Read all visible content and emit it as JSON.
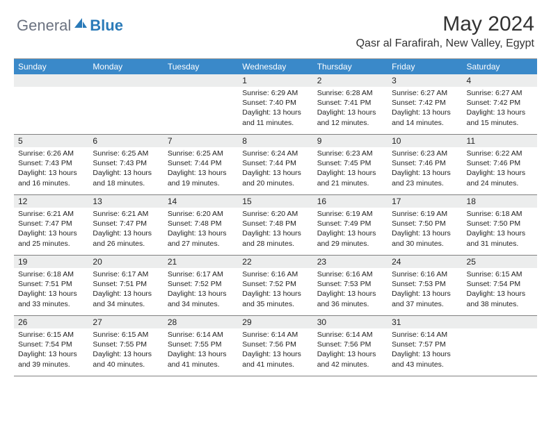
{
  "brand": {
    "gray": "General",
    "blue": "Blue"
  },
  "title": "May 2024",
  "location": "Qasr al Farafirah, New Valley, Egypt",
  "colors": {
    "header_bg": "#3a89c9",
    "daynum_bg": "#eceded",
    "border": "#808080",
    "logo_gray": "#6b7280",
    "logo_blue": "#2a7ab8"
  },
  "dayHeaders": [
    "Sunday",
    "Monday",
    "Tuesday",
    "Wednesday",
    "Thursday",
    "Friday",
    "Saturday"
  ],
  "weeks": [
    [
      {
        "n": "",
        "sunrise": "",
        "sunset": "",
        "daylight1": "",
        "daylight2": ""
      },
      {
        "n": "",
        "sunrise": "",
        "sunset": "",
        "daylight1": "",
        "daylight2": ""
      },
      {
        "n": "",
        "sunrise": "",
        "sunset": "",
        "daylight1": "",
        "daylight2": ""
      },
      {
        "n": "1",
        "sunrise": "Sunrise: 6:29 AM",
        "sunset": "Sunset: 7:40 PM",
        "daylight1": "Daylight: 13 hours",
        "daylight2": "and 11 minutes."
      },
      {
        "n": "2",
        "sunrise": "Sunrise: 6:28 AM",
        "sunset": "Sunset: 7:41 PM",
        "daylight1": "Daylight: 13 hours",
        "daylight2": "and 12 minutes."
      },
      {
        "n": "3",
        "sunrise": "Sunrise: 6:27 AM",
        "sunset": "Sunset: 7:42 PM",
        "daylight1": "Daylight: 13 hours",
        "daylight2": "and 14 minutes."
      },
      {
        "n": "4",
        "sunrise": "Sunrise: 6:27 AM",
        "sunset": "Sunset: 7:42 PM",
        "daylight1": "Daylight: 13 hours",
        "daylight2": "and 15 minutes."
      }
    ],
    [
      {
        "n": "5",
        "sunrise": "Sunrise: 6:26 AM",
        "sunset": "Sunset: 7:43 PM",
        "daylight1": "Daylight: 13 hours",
        "daylight2": "and 16 minutes."
      },
      {
        "n": "6",
        "sunrise": "Sunrise: 6:25 AM",
        "sunset": "Sunset: 7:43 PM",
        "daylight1": "Daylight: 13 hours",
        "daylight2": "and 18 minutes."
      },
      {
        "n": "7",
        "sunrise": "Sunrise: 6:25 AM",
        "sunset": "Sunset: 7:44 PM",
        "daylight1": "Daylight: 13 hours",
        "daylight2": "and 19 minutes."
      },
      {
        "n": "8",
        "sunrise": "Sunrise: 6:24 AM",
        "sunset": "Sunset: 7:44 PM",
        "daylight1": "Daylight: 13 hours",
        "daylight2": "and 20 minutes."
      },
      {
        "n": "9",
        "sunrise": "Sunrise: 6:23 AM",
        "sunset": "Sunset: 7:45 PM",
        "daylight1": "Daylight: 13 hours",
        "daylight2": "and 21 minutes."
      },
      {
        "n": "10",
        "sunrise": "Sunrise: 6:23 AM",
        "sunset": "Sunset: 7:46 PM",
        "daylight1": "Daylight: 13 hours",
        "daylight2": "and 23 minutes."
      },
      {
        "n": "11",
        "sunrise": "Sunrise: 6:22 AM",
        "sunset": "Sunset: 7:46 PM",
        "daylight1": "Daylight: 13 hours",
        "daylight2": "and 24 minutes."
      }
    ],
    [
      {
        "n": "12",
        "sunrise": "Sunrise: 6:21 AM",
        "sunset": "Sunset: 7:47 PM",
        "daylight1": "Daylight: 13 hours",
        "daylight2": "and 25 minutes."
      },
      {
        "n": "13",
        "sunrise": "Sunrise: 6:21 AM",
        "sunset": "Sunset: 7:47 PM",
        "daylight1": "Daylight: 13 hours",
        "daylight2": "and 26 minutes."
      },
      {
        "n": "14",
        "sunrise": "Sunrise: 6:20 AM",
        "sunset": "Sunset: 7:48 PM",
        "daylight1": "Daylight: 13 hours",
        "daylight2": "and 27 minutes."
      },
      {
        "n": "15",
        "sunrise": "Sunrise: 6:20 AM",
        "sunset": "Sunset: 7:48 PM",
        "daylight1": "Daylight: 13 hours",
        "daylight2": "and 28 minutes."
      },
      {
        "n": "16",
        "sunrise": "Sunrise: 6:19 AM",
        "sunset": "Sunset: 7:49 PM",
        "daylight1": "Daylight: 13 hours",
        "daylight2": "and 29 minutes."
      },
      {
        "n": "17",
        "sunrise": "Sunrise: 6:19 AM",
        "sunset": "Sunset: 7:50 PM",
        "daylight1": "Daylight: 13 hours",
        "daylight2": "and 30 minutes."
      },
      {
        "n": "18",
        "sunrise": "Sunrise: 6:18 AM",
        "sunset": "Sunset: 7:50 PM",
        "daylight1": "Daylight: 13 hours",
        "daylight2": "and 31 minutes."
      }
    ],
    [
      {
        "n": "19",
        "sunrise": "Sunrise: 6:18 AM",
        "sunset": "Sunset: 7:51 PM",
        "daylight1": "Daylight: 13 hours",
        "daylight2": "and 33 minutes."
      },
      {
        "n": "20",
        "sunrise": "Sunrise: 6:17 AM",
        "sunset": "Sunset: 7:51 PM",
        "daylight1": "Daylight: 13 hours",
        "daylight2": "and 34 minutes."
      },
      {
        "n": "21",
        "sunrise": "Sunrise: 6:17 AM",
        "sunset": "Sunset: 7:52 PM",
        "daylight1": "Daylight: 13 hours",
        "daylight2": "and 34 minutes."
      },
      {
        "n": "22",
        "sunrise": "Sunrise: 6:16 AM",
        "sunset": "Sunset: 7:52 PM",
        "daylight1": "Daylight: 13 hours",
        "daylight2": "and 35 minutes."
      },
      {
        "n": "23",
        "sunrise": "Sunrise: 6:16 AM",
        "sunset": "Sunset: 7:53 PM",
        "daylight1": "Daylight: 13 hours",
        "daylight2": "and 36 minutes."
      },
      {
        "n": "24",
        "sunrise": "Sunrise: 6:16 AM",
        "sunset": "Sunset: 7:53 PM",
        "daylight1": "Daylight: 13 hours",
        "daylight2": "and 37 minutes."
      },
      {
        "n": "25",
        "sunrise": "Sunrise: 6:15 AM",
        "sunset": "Sunset: 7:54 PM",
        "daylight1": "Daylight: 13 hours",
        "daylight2": "and 38 minutes."
      }
    ],
    [
      {
        "n": "26",
        "sunrise": "Sunrise: 6:15 AM",
        "sunset": "Sunset: 7:54 PM",
        "daylight1": "Daylight: 13 hours",
        "daylight2": "and 39 minutes."
      },
      {
        "n": "27",
        "sunrise": "Sunrise: 6:15 AM",
        "sunset": "Sunset: 7:55 PM",
        "daylight1": "Daylight: 13 hours",
        "daylight2": "and 40 minutes."
      },
      {
        "n": "28",
        "sunrise": "Sunrise: 6:14 AM",
        "sunset": "Sunset: 7:55 PM",
        "daylight1": "Daylight: 13 hours",
        "daylight2": "and 41 minutes."
      },
      {
        "n": "29",
        "sunrise": "Sunrise: 6:14 AM",
        "sunset": "Sunset: 7:56 PM",
        "daylight1": "Daylight: 13 hours",
        "daylight2": "and 41 minutes."
      },
      {
        "n": "30",
        "sunrise": "Sunrise: 6:14 AM",
        "sunset": "Sunset: 7:56 PM",
        "daylight1": "Daylight: 13 hours",
        "daylight2": "and 42 minutes."
      },
      {
        "n": "31",
        "sunrise": "Sunrise: 6:14 AM",
        "sunset": "Sunset: 7:57 PM",
        "daylight1": "Daylight: 13 hours",
        "daylight2": "and 43 minutes."
      },
      {
        "n": "",
        "sunrise": "",
        "sunset": "",
        "daylight1": "",
        "daylight2": ""
      }
    ]
  ]
}
